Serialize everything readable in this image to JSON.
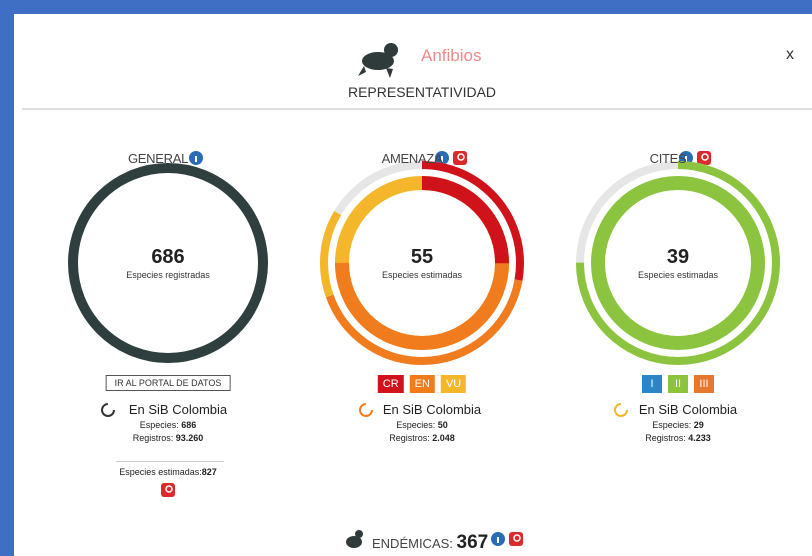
{
  "header": {
    "title": "Anfibios",
    "subtitle": "REPRESENTATIVIDAD",
    "close": "x"
  },
  "sections": [
    {
      "title": "GENERAL",
      "value": "686",
      "caption": "Especies registradas",
      "button": "IR AL PORTAL DE DATOS",
      "source": "En SiB Colombia",
      "species_label": "Especies:",
      "species": "686",
      "records_label": "Registros:",
      "records": "93.260",
      "estimated_label": "Especies estimadas:",
      "estimated": "827"
    },
    {
      "title": "AMENAZA",
      "value": "55",
      "caption": "Especies estimadas",
      "badges": [
        "CR",
        "EN",
        "VU"
      ],
      "source": "En SiB Colombia",
      "species_label": "Especies:",
      "species": "50",
      "records_label": "Registros:",
      "records": "2.048"
    },
    {
      "title": "CITES",
      "value": "39",
      "caption": "Especies estimadas",
      "badges": [
        "I",
        "II",
        "III"
      ],
      "source": "En SiB Colombia",
      "species_label": "Especies:",
      "species": "29",
      "records_label": "Registros:",
      "records": "4.233"
    }
  ],
  "endemic": {
    "label": "ENDÉMICAS:",
    "value": "367"
  }
}
